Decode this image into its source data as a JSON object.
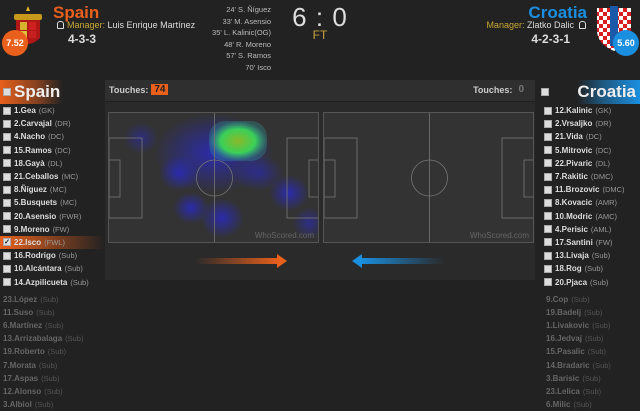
{
  "home": {
    "name": "Spain",
    "manager_label": "Manager:",
    "manager": "Luis Enrique Martínez",
    "formation": "4-3-3",
    "rating": "7.52",
    "color": "#e8601c",
    "players": [
      {
        "label": "1.Gea",
        "pos": "(GK)"
      },
      {
        "label": "2.Carvajal",
        "pos": "(DR)"
      },
      {
        "label": "4.Nacho",
        "pos": "(DC)"
      },
      {
        "label": "15.Ramos",
        "pos": "(DC)"
      },
      {
        "label": "18.Gayà",
        "pos": "(DL)"
      },
      {
        "label": "21.Ceballos",
        "pos": "(MC)"
      },
      {
        "label": "8.Ñíguez",
        "pos": "(MC)"
      },
      {
        "label": "5.Busquets",
        "pos": "(MC)"
      },
      {
        "label": "20.Asensio",
        "pos": "(FWR)"
      },
      {
        "label": "9.Moreno",
        "pos": "(FW)"
      },
      {
        "label": "22.Isco",
        "pos": "(FWL)",
        "selected": true
      },
      {
        "label": "16.Rodrigo",
        "pos": "(Sub)"
      },
      {
        "label": "10.Alcántara",
        "pos": "(Sub)"
      },
      {
        "label": "14.Azpilicueta",
        "pos": "(Sub)"
      }
    ],
    "unused": [
      {
        "label": "23.López",
        "pos": "(Sub)"
      },
      {
        "label": "11.Suso",
        "pos": "(Sub)"
      },
      {
        "label": "6.Martínez",
        "pos": "(Sub)"
      },
      {
        "label": "13.Arrizabalaga",
        "pos": "(Sub)"
      },
      {
        "label": "19.Roberto",
        "pos": "(Sub)"
      },
      {
        "label": "7.Morata",
        "pos": "(Sub)"
      },
      {
        "label": "17.Aspas",
        "pos": "(Sub)"
      },
      {
        "label": "12.Alonso",
        "pos": "(Sub)"
      },
      {
        "label": "3.Albiol",
        "pos": "(Sub)"
      }
    ],
    "touches_label": "Touches:",
    "touches": "74"
  },
  "away": {
    "name": "Croatia",
    "manager_label": "Manager:",
    "manager": "Zlatko Dalic",
    "formation": "4-2-3-1",
    "rating": "5.60",
    "color": "#1a8fe0",
    "players": [
      {
        "label": "12.Kalinic",
        "pos": "(GK)"
      },
      {
        "label": "2.Vrsaljko",
        "pos": "(DR)"
      },
      {
        "label": "21.Vida",
        "pos": "(DC)"
      },
      {
        "label": "5.Mitrovic",
        "pos": "(DC)"
      },
      {
        "label": "22.Pivaric",
        "pos": "(DL)"
      },
      {
        "label": "7.Rakitic",
        "pos": "(DMC)"
      },
      {
        "label": "11.Brozovic",
        "pos": "(DMC)"
      },
      {
        "label": "8.Kovacic",
        "pos": "(AMR)"
      },
      {
        "label": "10.Modric",
        "pos": "(AMC)"
      },
      {
        "label": "4.Perisic",
        "pos": "(AML)"
      },
      {
        "label": "17.Santini",
        "pos": "(FW)"
      },
      {
        "label": "13.Livaja",
        "pos": "(Sub)"
      },
      {
        "label": "18.Rog",
        "pos": "(Sub)"
      },
      {
        "label": "20.Pjaca",
        "pos": "(Sub)"
      }
    ],
    "unused": [
      {
        "label": "9.Cop",
        "pos": "(Sub)"
      },
      {
        "label": "19.Badelj",
        "pos": "(Sub)"
      },
      {
        "label": "1.Livakovic",
        "pos": "(Sub)"
      },
      {
        "label": "16.Jedvaj",
        "pos": "(Sub)"
      },
      {
        "label": "15.Pasalic",
        "pos": "(Sub)"
      },
      {
        "label": "14.Bradaric",
        "pos": "(Sub)"
      },
      {
        "label": "3.Barisic",
        "pos": "(Sub)"
      },
      {
        "label": "23.Lelica",
        "pos": "(Sub)"
      },
      {
        "label": "6.Milic",
        "pos": "(Sub)"
      }
    ],
    "touches_label": "Touches:",
    "touches": "0"
  },
  "score": {
    "home": "6",
    "sep": ":",
    "away": "0",
    "status": "FT"
  },
  "goals": [
    "24' S. Ñíguez",
    "33' M. Asensio",
    "35' L. Kalinic(OG)",
    "48' R. Moreno",
    "57' S. Ramos",
    "70' Isco"
  ],
  "watermark": "WhoScored.com"
}
